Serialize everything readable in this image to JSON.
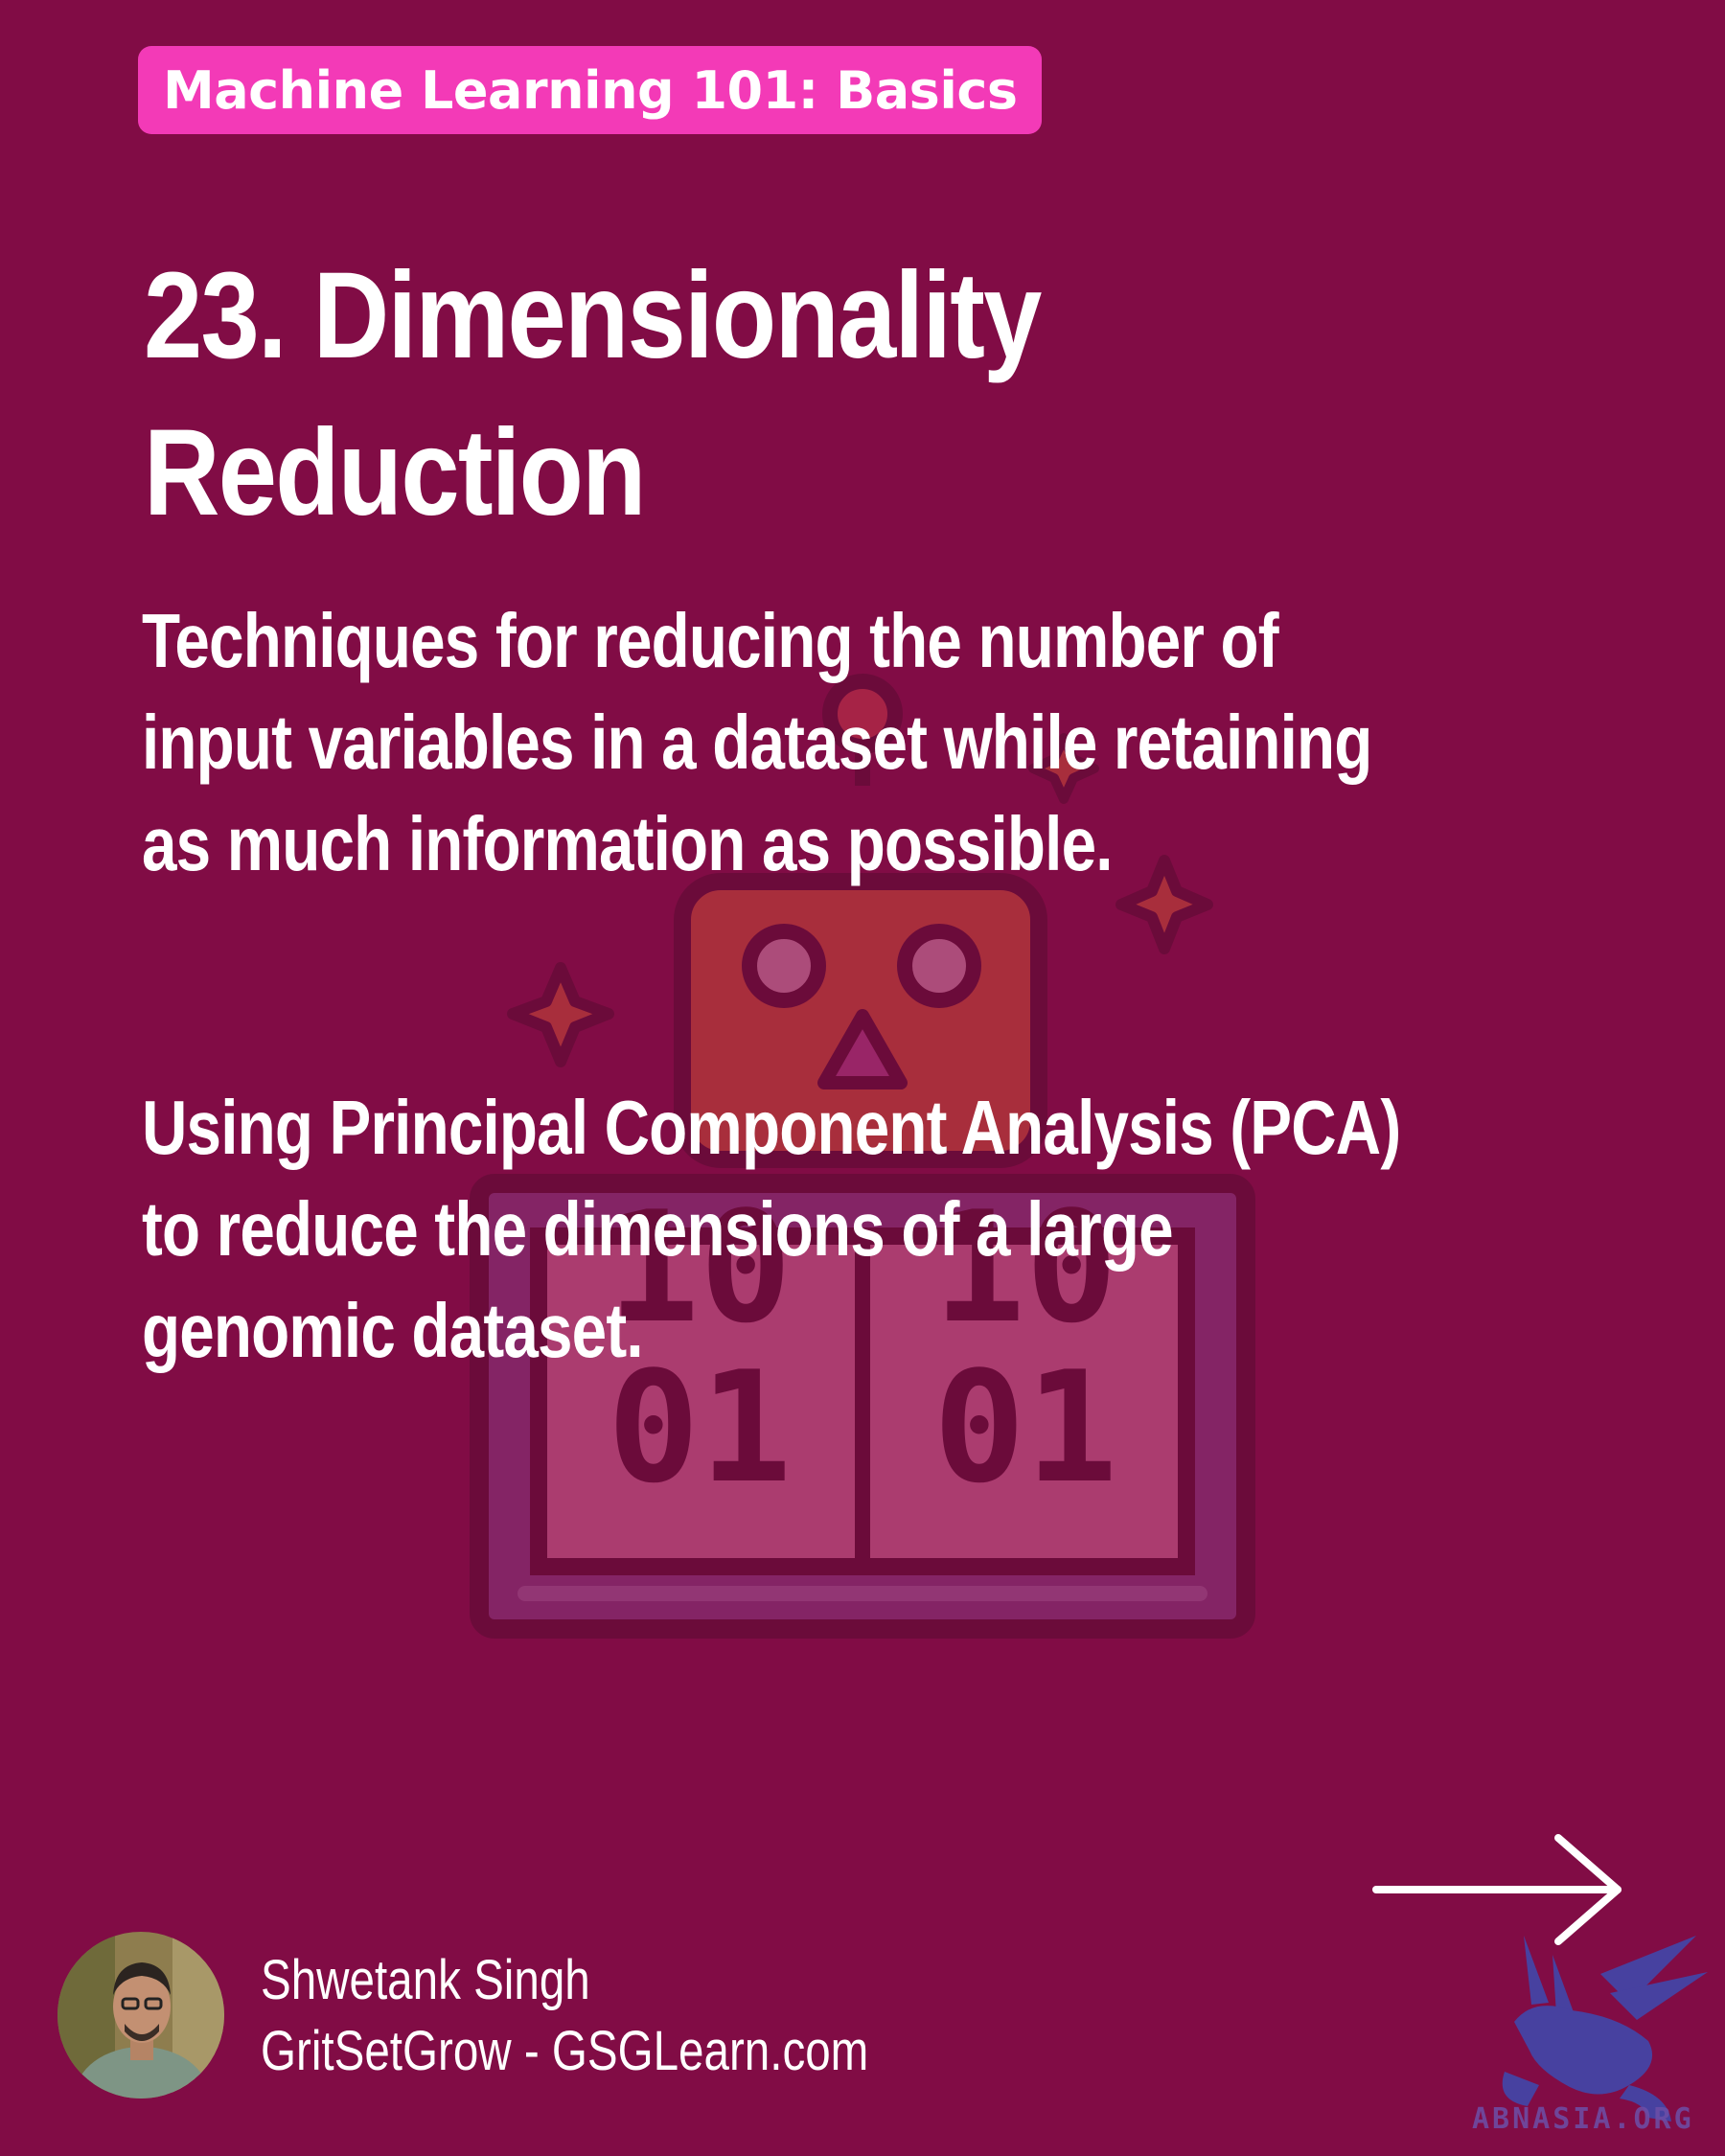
{
  "badge": {
    "label": "Machine Learning 101: Basics"
  },
  "title": {
    "line1": "23. Dimensionality",
    "line2": "Reduction"
  },
  "definition": {
    "line1": "Techniques for reducing the number of",
    "line2": "input variables in a dataset while retaining",
    "line3": "as much information as possible."
  },
  "example": {
    "line1": "Using Principal Component Analysis (PCA)",
    "line2": "to reduce the dimensions of a large",
    "line3": "genomic dataset."
  },
  "illustration": {
    "binary_top_left": "10",
    "binary_top_right": "10",
    "binary_bottom_left": "01",
    "binary_bottom_right": "01"
  },
  "author": {
    "name": "Shwetank Singh",
    "site": "GritSetGrow - GSGLearn.com"
  },
  "watermark": {
    "text": "ABNASIA.ORG"
  },
  "colors": {
    "background": "#810c45",
    "badge": "#f33ab7",
    "text": "#ffffff"
  },
  "icons": {
    "next": "arrow-right-icon",
    "illustration": "robot-binary-icon",
    "watermark": "griffin-logo"
  }
}
